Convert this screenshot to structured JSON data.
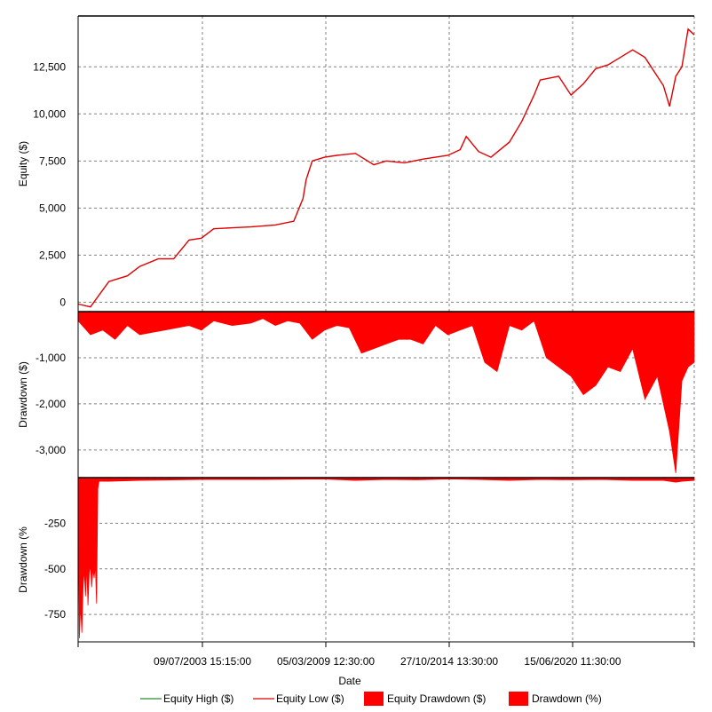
{
  "colors": {
    "equity_high": "#2e8b2e",
    "equity_low": "#e00000",
    "drawdown_fill": "#ff0000",
    "grid": "#808080"
  },
  "x_ticks": [
    "09/07/2003 15:15:00",
    "05/03/2009 12:30:00",
    "27/10/2014 13:30:00",
    "15/06/2020 11:30:00"
  ],
  "x_label": "Date",
  "legend": [
    {
      "label": "Equity High ($)",
      "kind": "line",
      "color": "#2e8b2e"
    },
    {
      "label": "Equity Low ($)",
      "kind": "line",
      "color": "#e00000"
    },
    {
      "label": "Equity Drawdown ($)",
      "kind": "box",
      "color": "#ff0000"
    },
    {
      "label": "Drawdown (%)",
      "kind": "box",
      "color": "#ff0000"
    }
  ],
  "chart_data": [
    {
      "type": "line",
      "ylabel": "Equity ($)",
      "yticks": [
        "0",
        "2,500",
        "5,000",
        "7,500",
        "10,000",
        "12,500"
      ],
      "ytick_values": [
        0,
        2500,
        5000,
        7500,
        10000,
        12500
      ],
      "ylim": [
        -500,
        15200
      ],
      "grid": true,
      "series": [
        {
          "name": "Equity Low ($)",
          "x": [
            0.0,
            0.02,
            0.03,
            0.05,
            0.08,
            0.1,
            0.13,
            0.155,
            0.18,
            0.2,
            0.22,
            0.25,
            0.28,
            0.32,
            0.35,
            0.365,
            0.37,
            0.38,
            0.4,
            0.42,
            0.45,
            0.48,
            0.5,
            0.53,
            0.56,
            0.58,
            0.6,
            0.62,
            0.63,
            0.65,
            0.67,
            0.7,
            0.72,
            0.74,
            0.75,
            0.78,
            0.8,
            0.82,
            0.84,
            0.86,
            0.88,
            0.9,
            0.92,
            0.95,
            0.96,
            0.97,
            0.98,
            0.99,
            1.0
          ],
          "y": [
            -100,
            -250,
            200,
            1100,
            1400,
            1900,
            2300,
            2300,
            3300,
            3400,
            3900,
            3950,
            4000,
            4100,
            4300,
            5500,
            6500,
            7500,
            7700,
            7800,
            7900,
            7300,
            7500,
            7400,
            7600,
            7700,
            7800,
            8100,
            8800,
            8000,
            7700,
            8500,
            9600,
            11000,
            11800,
            12000,
            11000,
            11600,
            12400,
            12600,
            13000,
            13400,
            13000,
            11500,
            10400,
            12000,
            12500,
            14500,
            14200
          ]
        }
      ]
    },
    {
      "type": "area",
      "ylabel": "Drawdown ($)",
      "yticks": [
        "-1,000",
        "-2,000",
        "-3,000"
      ],
      "ytick_values": [
        -1000,
        -2000,
        -3000
      ],
      "ylim": [
        -3600,
        0
      ],
      "series": [
        {
          "name": "Equity Drawdown ($)",
          "x": [
            0.0,
            0.02,
            0.04,
            0.06,
            0.08,
            0.1,
            0.12,
            0.14,
            0.16,
            0.18,
            0.2,
            0.22,
            0.25,
            0.28,
            0.3,
            0.32,
            0.34,
            0.36,
            0.38,
            0.4,
            0.42,
            0.44,
            0.46,
            0.48,
            0.5,
            0.52,
            0.54,
            0.56,
            0.58,
            0.6,
            0.62,
            0.64,
            0.66,
            0.68,
            0.7,
            0.72,
            0.74,
            0.76,
            0.78,
            0.8,
            0.82,
            0.84,
            0.86,
            0.88,
            0.9,
            0.92,
            0.94,
            0.95,
            0.96,
            0.97,
            0.98,
            0.99,
            1.0
          ],
          "y": [
            -200,
            -500,
            -400,
            -600,
            -300,
            -500,
            -450,
            -400,
            -350,
            -300,
            -400,
            -200,
            -300,
            -250,
            -150,
            -300,
            -200,
            -250,
            -600,
            -400,
            -300,
            -350,
            -900,
            -800,
            -700,
            -600,
            -600,
            -700,
            -300,
            -500,
            -400,
            -300,
            -1100,
            -1300,
            -300,
            -400,
            -200,
            -1000,
            -1200,
            -1400,
            -1800,
            -1600,
            -1200,
            -1300,
            -800,
            -1900,
            -1400,
            -2000,
            -2600,
            -3500,
            -1500,
            -1200,
            -1100
          ]
        }
      ]
    },
    {
      "type": "area",
      "ylabel": "Drawdown (%",
      "yticks": [
        "-250",
        "-500",
        "-750"
      ],
      "ytick_values": [
        -250,
        -500,
        -750
      ],
      "ylim": [
        -900,
        0
      ],
      "series": [
        {
          "name": "Drawdown (%)",
          "x": [
            0.0,
            0.002,
            0.004,
            0.006,
            0.008,
            0.01,
            0.012,
            0.014,
            0.016,
            0.018,
            0.02,
            0.022,
            0.024,
            0.026,
            0.028,
            0.03,
            0.032,
            0.034,
            0.05,
            0.1,
            0.2,
            0.3,
            0.4,
            0.45,
            0.5,
            0.55,
            0.6,
            0.65,
            0.7,
            0.75,
            0.8,
            0.85,
            0.9,
            0.95,
            0.97,
            0.98,
            1.0
          ],
          "y": [
            -20,
            -880,
            -700,
            -850,
            -600,
            -500,
            -650,
            -480,
            -700,
            -520,
            -480,
            -600,
            -500,
            -550,
            -480,
            -690,
            -60,
            -20,
            -20,
            -15,
            -10,
            -10,
            -8,
            -15,
            -10,
            -12,
            -8,
            -10,
            -15,
            -10,
            -12,
            -10,
            -15,
            -15,
            -25,
            -20,
            -15
          ]
        }
      ]
    }
  ]
}
